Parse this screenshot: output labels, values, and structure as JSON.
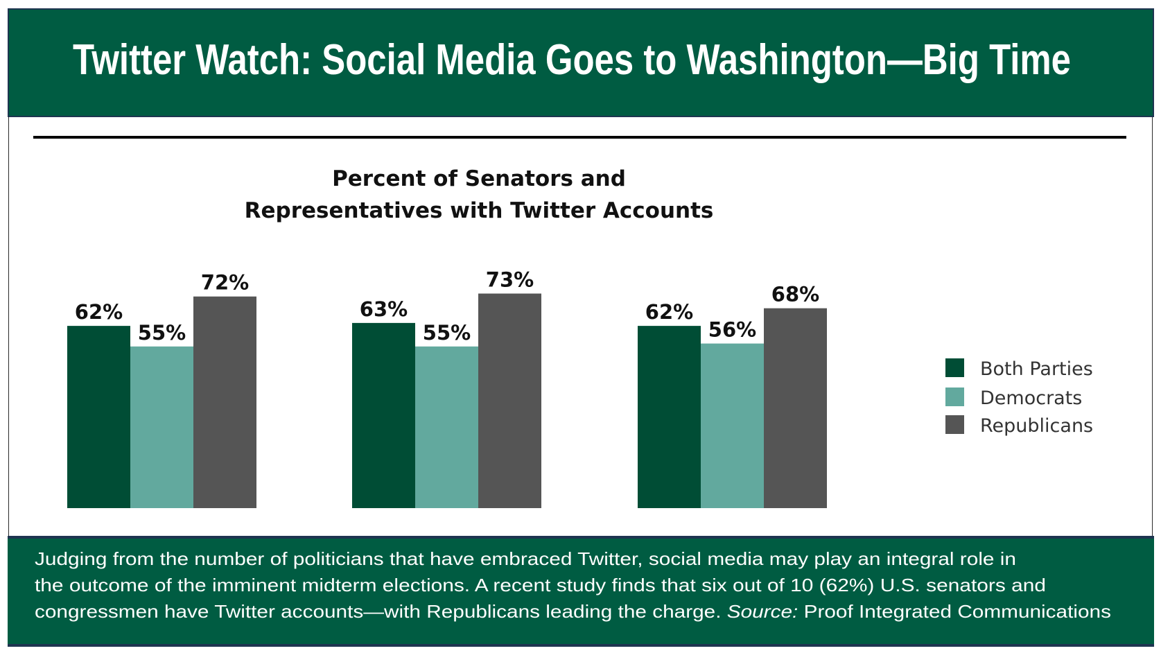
{
  "header": {
    "title": "Twitter Watch: Social Media Goes to Washington—Big Time"
  },
  "footer": {
    "line1": "Judging from the number of politicians that have embraced Twitter, social media may play an integral role in",
    "line2": "the outcome of the imminent midterm elections. A recent study finds that six out of 10 (62%) U.S. senators and",
    "line3_main": "congressmen have Twitter accounts—with Republicans leading the charge.  ",
    "line3_source_label": "Source:",
    "line3_source": " Proof Integrated Communications"
  },
  "chart_data": {
    "type": "bar",
    "title_line1": "Percent of Senators and",
    "title_line2": "Representatives with Twitter Accounts",
    "categories": [
      "",
      "",
      ""
    ],
    "series": [
      {
        "name": "Both Parties",
        "color": "#004d35",
        "values": [
          62,
          63,
          62
        ],
        "labels": [
          "62%",
          "63%",
          "62%"
        ]
      },
      {
        "name": "Democrats",
        "color": "#62a99e",
        "values": [
          55,
          55,
          56
        ],
        "labels": [
          "55%",
          "55%",
          "56%"
        ]
      },
      {
        "name": "Republicans",
        "color": "#555555",
        "values": [
          72,
          73,
          68
        ],
        "labels": [
          "72%",
          "73%",
          "68%"
        ]
      }
    ],
    "ylim": [
      0,
      100
    ],
    "grid": false,
    "legend": "right"
  }
}
